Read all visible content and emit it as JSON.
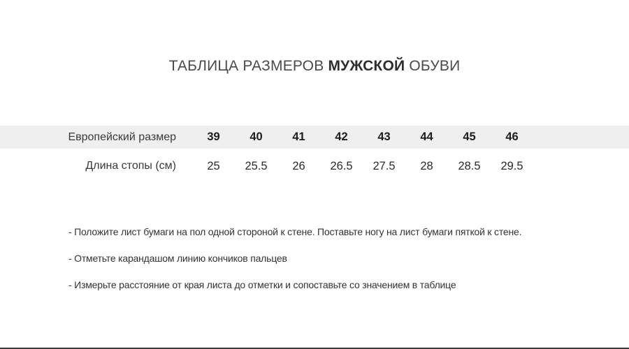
{
  "title": {
    "prefix": "ТАБЛИЦА РАЗМЕРОВ ",
    "highlight": "МУЖСКОЙ",
    "suffix": " ОБУВИ"
  },
  "table": {
    "rows": [
      {
        "label": "Европейский размер",
        "values": [
          "39",
          "40",
          "41",
          "42",
          "43",
          "44",
          "45",
          "46"
        ]
      },
      {
        "label": "Длина стопы (см)",
        "values": [
          "25",
          "25.5",
          "26",
          "26.5",
          "27.5",
          "28",
          "28.5",
          "29.5"
        ]
      }
    ]
  },
  "chart_data": {
    "type": "table",
    "title": "ТАБЛИЦА РАЗМЕРОВ МУЖСКОЙ ОБУВИ",
    "row_headers": [
      "Европейский размер",
      "Длина стопы (см)"
    ],
    "european_sizes": [
      39,
      40,
      41,
      42,
      43,
      44,
      45,
      46
    ],
    "foot_length_cm": [
      25,
      25.5,
      26,
      26.5,
      27.5,
      28,
      28.5,
      29.5
    ]
  },
  "instructions": [
    "- Положите лист бумаги на пол одной стороной к стене. Поставьте ногу на лист бумаги пяткой к стене.",
    "- Отметьте карандашом линию кончиков пальцев",
    "- Измерьте расстояние от края листа до отметки и сопоставьте со значением в таблице"
  ],
  "colors": {
    "header_row_bg": "#efefef",
    "title_text": "#4a4a4a",
    "body_text": "#333333",
    "divider": "#3b3b3b"
  }
}
